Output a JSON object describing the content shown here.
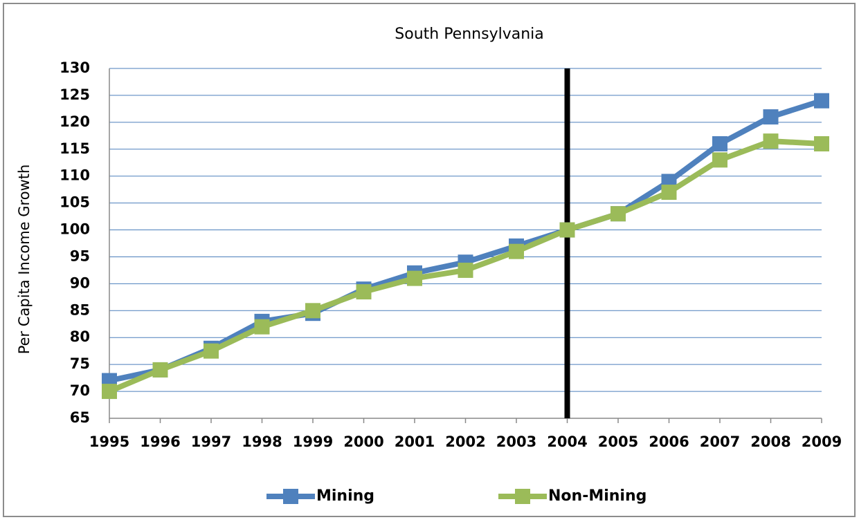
{
  "chart_data": {
    "type": "line",
    "title": "South Pennsylvania",
    "y_label": "Per Capita Income Growth",
    "categories": [
      "1995",
      "1996",
      "1997",
      "1998",
      "1999",
      "2000",
      "2001",
      "2002",
      "2003",
      "2004",
      "2005",
      "2006",
      "2007",
      "2008",
      "2009"
    ],
    "series": [
      {
        "name": "Mining",
        "color": "#4f81bd",
        "values": [
          72,
          74,
          78,
          83,
          84.5,
          89,
          92,
          94,
          97,
          100,
          103,
          109,
          116,
          121,
          124
        ]
      },
      {
        "name": "Non-Mining",
        "color": "#9bbb59",
        "values": [
          70,
          74,
          77.5,
          82,
          85,
          88.5,
          91,
          92.5,
          96,
          100,
          103,
          107,
          113,
          116.5,
          116
        ]
      }
    ],
    "ylim": [
      65,
      130
    ],
    "yticks": [
      65,
      70,
      75,
      80,
      85,
      90,
      95,
      100,
      105,
      110,
      115,
      120,
      125,
      130
    ],
    "grid": true,
    "vertical_line": "2004",
    "legend": "bottom"
  }
}
